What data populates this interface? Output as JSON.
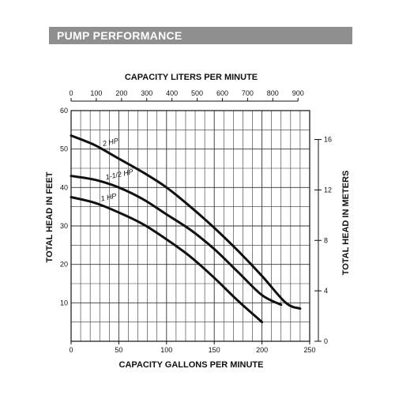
{
  "header": {
    "title": "PUMP PERFORMANCE",
    "background": "#8f8f8f",
    "text_color": "#ffffff"
  },
  "chart_data": {
    "type": "line",
    "grid": true,
    "xlabel": "CAPACITY GALLONS PER MINUTE",
    "ylabel": "TOTAL HEAD IN FEET",
    "xlim": [
      0,
      250
    ],
    "ylim": [
      0,
      60
    ],
    "x_ticks": [
      "0",
      "50",
      "100",
      "150",
      "200",
      "250"
    ],
    "y_ticks": [
      "10",
      "20",
      "30",
      "40",
      "50",
      "60"
    ],
    "top_axis": {
      "label": "CAPACITY LITERS PER MINUTE",
      "ticks": [
        "0",
        "100",
        "200",
        "300",
        "400",
        "500",
        "600",
        "700",
        "800",
        "900"
      ]
    },
    "right_axis": {
      "label": "TOTAL HEAD IN METERS",
      "ticks": [
        "0",
        "4",
        "8",
        "12",
        "16"
      ]
    },
    "series": [
      {
        "name": "2 HP",
        "x": [
          0,
          25,
          50,
          75,
          100,
          125,
          150,
          175,
          200,
          225,
          240
        ],
        "values": [
          53.5,
          51,
          47.5,
          44,
          40,
          35,
          29.5,
          23.5,
          17,
          10,
          8.5
        ]
      },
      {
        "name": "1-1/2 HP",
        "x": [
          0,
          25,
          50,
          75,
          100,
          125,
          150,
          175,
          200,
          220
        ],
        "values": [
          43,
          42,
          40,
          37,
          33,
          29,
          24,
          18,
          12,
          9.5
        ]
      },
      {
        "name": "1 HP",
        "x": [
          0,
          25,
          50,
          75,
          100,
          125,
          150,
          175,
          200
        ],
        "values": [
          37.5,
          36,
          33.5,
          30.5,
          26.5,
          22,
          16.5,
          10.5,
          5
        ]
      }
    ]
  }
}
